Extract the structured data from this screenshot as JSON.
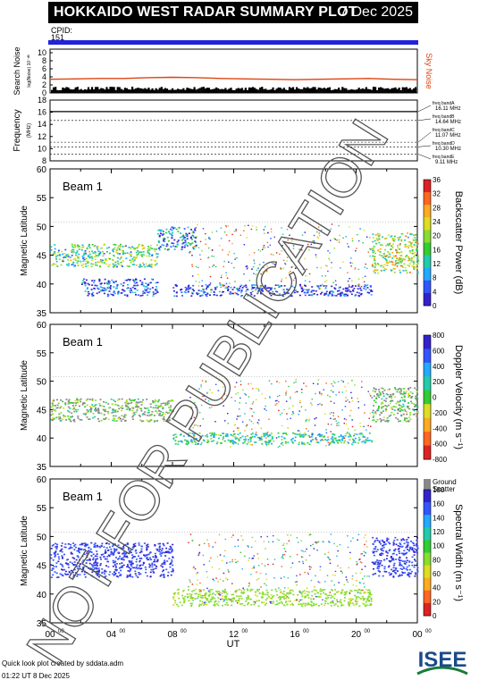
{
  "header": {
    "title": "HOKKAIDO WEST RADAR SUMMARY PLOT",
    "date": "7 Dec 2025",
    "cpid_label": "CPID:",
    "cpid_value": "151"
  },
  "panels": {
    "noise": {
      "ylabel_main": "Search Noise",
      "ylabel_sub": "log(Noise) 10⁻ᵈᴮ",
      "yticks": [
        "10",
        "8",
        "6",
        "4",
        "2",
        "0"
      ],
      "right_label": "Sky Noise",
      "sky_color": "#dd4411"
    },
    "frequency": {
      "ylabel_main": "Frequency",
      "ylabel_sub": "(MHz)",
      "yticks": [
        "18",
        "16",
        "14",
        "12",
        "10",
        "8"
      ],
      "bands": [
        "freq bandA 16.11 MHz",
        "freq bandB 14.64 MHz",
        "freq bandC 11.07 MHz",
        "freq bandD 10.30 MHz",
        "freq bandE 9.11 MHz"
      ]
    },
    "power": {
      "ylabel": "Magnetic Latitude",
      "beam_label": "Beam  1",
      "colorbar_title": "Backscatter Power (dB)",
      "colorbar_ticks": [
        "36",
        "32",
        "28",
        "24",
        "20",
        "16",
        "12",
        "8",
        "4",
        "0"
      ]
    },
    "velocity": {
      "ylabel": "Magnetic Latitude",
      "beam_label": "Beam  1",
      "colorbar_title": "Doppler Velocity (m s⁻¹)",
      "colorbar_ticks": [
        "800",
        "600",
        "400",
        "200",
        "0",
        "-200",
        "-400",
        "-600",
        "-800"
      ],
      "ground_label": "Ground",
      "scatter_label": "Scatter"
    },
    "width": {
      "ylabel": "Magnetic Latitude",
      "beam_label": "Beam  1",
      "colorbar_title": "Spectral Width (m s⁻¹)",
      "colorbar_ticks": [
        "180",
        "160",
        "140",
        "120",
        "100",
        "80",
        "60",
        "40",
        "20",
        "0"
      ]
    }
  },
  "lat_ticks": [
    "60",
    "55",
    "50",
    "45",
    "40",
    "35"
  ],
  "time_ticks": [
    "00",
    "04",
    "08",
    "12",
    "16",
    "20",
    "00"
  ],
  "time_ticks_sup": "00",
  "xlabel": "UT",
  "footer": {
    "credit": "Quick look plot created by sddata.adm",
    "time": "01:22 UT  8 Dec 2025"
  },
  "logo_text": "ISEE",
  "watermark": "NOT FOR PUBLICATION",
  "colors": {
    "cpid_bar": "#2222dd",
    "ground_scatter": "#888888"
  },
  "chart_data": [
    {
      "type": "line",
      "title": "Search Noise",
      "ylim": [
        0,
        10
      ],
      "series": [
        {
          "name": "Sky Noise",
          "values": [
            3.4,
            3.5,
            3.6,
            3.6,
            3.8,
            3.9,
            3.8,
            3.6,
            3.5,
            3.4,
            3.3,
            3.4,
            3.5,
            3.6,
            3.4,
            3.3
          ]
        }
      ]
    },
    {
      "type": "line",
      "title": "Frequency",
      "ylim": [
        8,
        18
      ],
      "series": [
        {
          "name": "freq bandA",
          "values": [
            16.11,
            16.11,
            16.11,
            16.11
          ]
        }
      ]
    },
    {
      "type": "heatmap",
      "title": "Backscatter Power (dB)",
      "x_range_ut": [
        0,
        24
      ],
      "ylim": [
        35,
        60
      ],
      "regions": [
        {
          "ut": [
            0.0,
            7.0
          ],
          "lat": [
            43,
            47
          ],
          "value": 16
        },
        {
          "ut": [
            7.0,
            9.5
          ],
          "lat": [
            46,
            50
          ],
          "value": 8
        },
        {
          "ut": [
            2.0,
            7.0
          ],
          "lat": [
            38,
            41
          ],
          "value": 4
        },
        {
          "ut": [
            8.0,
            21.0
          ],
          "lat": [
            38,
            40
          ],
          "value": 2
        },
        {
          "ut": [
            21.0,
            24.0
          ],
          "lat": [
            42,
            49
          ],
          "value": 20
        }
      ],
      "colorbar_range": [
        0,
        36
      ]
    },
    {
      "type": "heatmap",
      "title": "Doppler Velocity (m s⁻¹)",
      "x_range_ut": [
        0,
        24
      ],
      "ylim": [
        35,
        60
      ],
      "regions": [
        {
          "ut": [
            0.0,
            8.0
          ],
          "lat": [
            43,
            47
          ],
          "value": 0
        },
        {
          "ut": [
            8.0,
            21.0
          ],
          "lat": [
            39,
            41
          ],
          "value": 200
        },
        {
          "ut": [
            21.0,
            24.0
          ],
          "lat": [
            43,
            49
          ],
          "value": 0
        }
      ],
      "colorbar_range": [
        -800,
        800
      ]
    },
    {
      "type": "heatmap",
      "title": "Spectral Width (m s⁻¹)",
      "x_range_ut": [
        0,
        24
      ],
      "ylim": [
        35,
        60
      ],
      "regions": [
        {
          "ut": [
            0.0,
            8.0
          ],
          "lat": [
            43,
            49
          ],
          "value": 160
        },
        {
          "ut": [
            8.0,
            21.0
          ],
          "lat": [
            38,
            41
          ],
          "value": 80
        },
        {
          "ut": [
            21.0,
            24.0
          ],
          "lat": [
            43,
            50
          ],
          "value": 160
        }
      ],
      "colorbar_range": [
        0,
        180
      ]
    }
  ]
}
